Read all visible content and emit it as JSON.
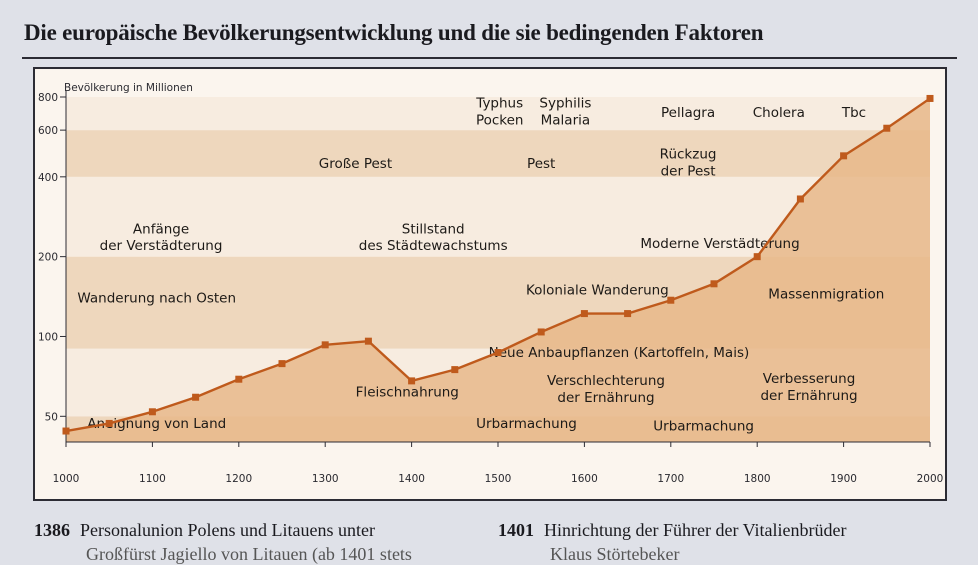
{
  "page": {
    "title": "Die europäische Bevölkerungsentwicklung und die sie bedingenden Faktoren",
    "footnotes": [
      {
        "year": "1386",
        "text": "Personalunion Polens und Litauens unter",
        "sub": "Großfürst Jagiello von Litauen (ab 1401 stets"
      },
      {
        "year": "1401",
        "text": "Hinrichtung der Führer der Vitalienbrüder",
        "sub": "Klaus Störtebeker"
      }
    ]
  },
  "colors": {
    "line": "#bf5a1c",
    "area": "#e8b98a",
    "band_light": "#f7ece0",
    "band_dark": "#eed7bd",
    "plot_bg": "#fbf5ee",
    "frame": "#2c2c34"
  },
  "chart_data": {
    "type": "area",
    "title": "Die europäische Bevölkerungsentwicklung und die sie bedingenden Faktoren",
    "ylabel": "Bevölkerung in Millionen",
    "xlabel": "",
    "y_scale": "log",
    "xlim": [
      1000,
      2000
    ],
    "ylim": [
      40,
      800
    ],
    "x_ticks": [
      1000,
      1100,
      1200,
      1300,
      1400,
      1500,
      1600,
      1700,
      1800,
      1900,
      2000
    ],
    "y_ticks": [
      50,
      100,
      200,
      400,
      600,
      800
    ],
    "x": [
      1000,
      1050,
      1100,
      1150,
      1200,
      1250,
      1300,
      1350,
      1400,
      1450,
      1500,
      1550,
      1600,
      1650,
      1700,
      1750,
      1800,
      1850,
      1900,
      1950,
      2000
    ],
    "values": [
      44,
      47,
      52,
      59,
      69,
      79,
      93,
      96,
      68,
      75,
      87,
      104,
      122,
      122,
      137,
      158,
      200,
      330,
      480,
      610,
      790
    ],
    "bands": [
      {
        "from": 40,
        "to": 50,
        "shade": "dark"
      },
      {
        "from": 50,
        "to": 90,
        "shade": "light"
      },
      {
        "from": 90,
        "to": 200,
        "shade": "dark"
      },
      {
        "from": 200,
        "to": 400,
        "shade": "light"
      },
      {
        "from": 400,
        "to": 600,
        "shade": "dark"
      },
      {
        "from": 600,
        "to": 800,
        "shade": "light"
      }
    ],
    "annotations": [
      {
        "lines": [
          "Aneignung von Land"
        ],
        "x": 1105,
        "y": 47,
        "align": "middle"
      },
      {
        "lines": [
          "Wanderung nach Osten"
        ],
        "x": 1105,
        "y": 140,
        "align": "middle"
      },
      {
        "lines": [
          "Anfänge",
          "der Verstädterung"
        ],
        "x": 1110,
        "y": 235,
        "align": "middle"
      },
      {
        "lines": [
          "Fleischnahrung"
        ],
        "x": 1395,
        "y": 62,
        "align": "middle"
      },
      {
        "lines": [
          "Stillstand",
          "des Städtewachstums"
        ],
        "x": 1425,
        "y": 235,
        "align": "middle"
      },
      {
        "lines": [
          "Große Pest"
        ],
        "x": 1335,
        "y": 450,
        "align": "middle"
      },
      {
        "lines": [
          "Urbarmachung"
        ],
        "x": 1533,
        "y": 47,
        "align": "middle"
      },
      {
        "lines": [
          "Verschlechterung",
          "der Ernährung"
        ],
        "x": 1625,
        "y": 63,
        "align": "middle"
      },
      {
        "lines": [
          "Neue Anbaupflanzen (Kartoffeln, Mais)"
        ],
        "x": 1640,
        "y": 87,
        "align": "middle"
      },
      {
        "lines": [
          "Koloniale Wanderung"
        ],
        "x": 1615,
        "y": 150,
        "align": "middle"
      },
      {
        "lines": [
          "Pest"
        ],
        "x": 1550,
        "y": 450,
        "align": "middle"
      },
      {
        "lines": [
          "Typhus",
          "Pocken"
        ],
        "x": 1502,
        "y": 700,
        "align": "middle"
      },
      {
        "lines": [
          "Syphilis",
          "Malaria"
        ],
        "x": 1578,
        "y": 700,
        "align": "middle"
      },
      {
        "lines": [
          "Rückzug",
          "der Pest"
        ],
        "x": 1720,
        "y": 450,
        "align": "middle"
      },
      {
        "lines": [
          "Moderne Verstädterung"
        ],
        "x": 1757,
        "y": 225,
        "align": "middle"
      },
      {
        "lines": [
          "Urbarmachung"
        ],
        "x": 1738,
        "y": 46,
        "align": "middle"
      },
      {
        "lines": [
          "Verbesserung",
          "der Ernährung"
        ],
        "x": 1860,
        "y": 64,
        "align": "middle"
      },
      {
        "lines": [
          "Massenmigration"
        ],
        "x": 1880,
        "y": 145,
        "align": "middle"
      },
      {
        "lines": [
          "Pellagra"
        ],
        "x": 1720,
        "y": 700,
        "align": "middle"
      },
      {
        "lines": [
          "Cholera"
        ],
        "x": 1825,
        "y": 700,
        "align": "middle"
      },
      {
        "lines": [
          "Tbc"
        ],
        "x": 1912,
        "y": 700,
        "align": "middle"
      }
    ]
  }
}
